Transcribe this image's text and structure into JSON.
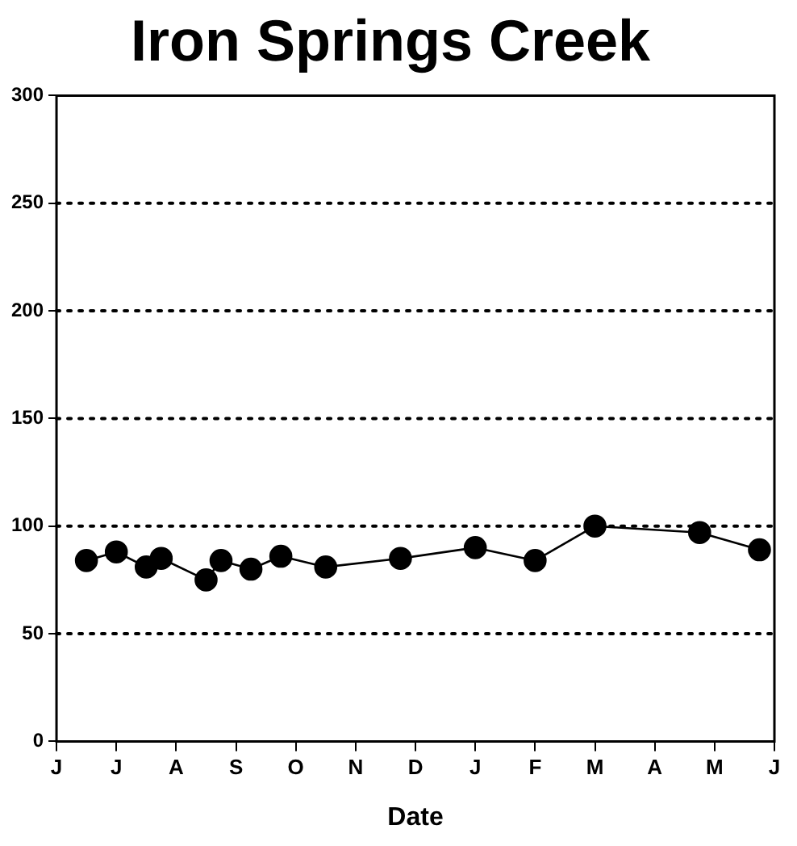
{
  "chart_data": {
    "type": "line",
    "title": "Iron Springs Creek",
    "xlabel": "Date",
    "categories": [
      "J",
      null,
      null,
      null,
      "J",
      null,
      null,
      null,
      "A",
      null,
      null,
      null,
      "S",
      null,
      null,
      null,
      "O",
      null,
      null,
      null,
      "N",
      null,
      null,
      null,
      "D",
      null,
      null,
      null,
      "J",
      null,
      null,
      null,
      "F",
      null,
      null,
      null,
      "M",
      null,
      null,
      null,
      "A",
      null,
      null,
      null,
      "M",
      null,
      null,
      null,
      "J"
    ],
    "series": [
      {
        "color": "#000000",
        "values": [
          null,
          null,
          84,
          null,
          88,
          null,
          81,
          85,
          null,
          null,
          75,
          84,
          null,
          80,
          null,
          86,
          null,
          null,
          81,
          null,
          null,
          null,
          null,
          85,
          null,
          null,
          null,
          null,
          90,
          null,
          null,
          null,
          84,
          null,
          null,
          null,
          100,
          null,
          null,
          null,
          null,
          null,
          null,
          97,
          null,
          null,
          null,
          89,
          null
        ]
      }
    ],
    "ylim": [
      0,
      300
    ],
    "yticks": [
      0,
      50,
      100,
      150,
      200,
      250,
      300
    ],
    "grid": "y",
    "marker": "circle",
    "line_style": "solid"
  }
}
